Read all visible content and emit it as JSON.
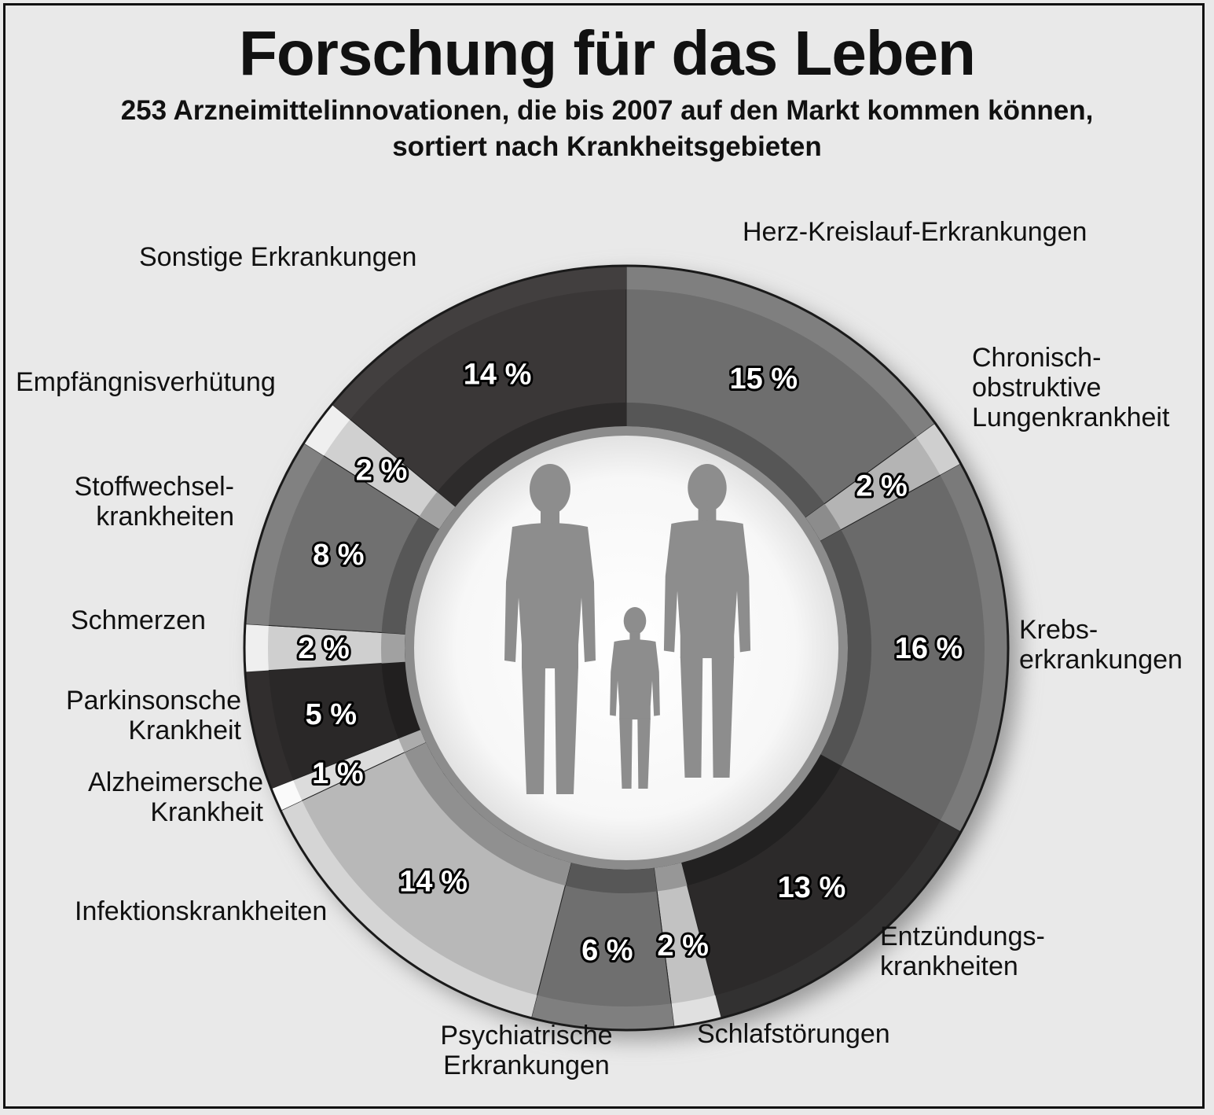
{
  "title": "Forschung für das Leben",
  "subtitle_line1": "253 Arzneimittelinnovationen, die bis 2007 auf den Markt kommen können,",
  "subtitle_line2": "sortiert nach Krankheitsgebieten",
  "chart_data": {
    "type": "pie",
    "title": "Forschung für das Leben",
    "subtitle": "253 Arzneimittelinnovationen, die bis 2007 auf den Markt kommen können, sortiert nach Krankheitsgebieten",
    "slices": [
      {
        "label": "Herz-Kreislauf-Erkrankungen",
        "value": 15,
        "value_label": "15 %",
        "color": "#6e6e6e"
      },
      {
        "label": "Chronisch-obstruktive Lungenkrankheit",
        "value": 2,
        "value_label": "2 %",
        "color": "#b4b4b4"
      },
      {
        "label": "Krebs-erkrankungen",
        "value": 16,
        "value_label": "16 %",
        "color": "#6a6a6a"
      },
      {
        "label": "Entzündungs-krankheiten",
        "value": 13,
        "value_label": "13 %",
        "color": "#2c2a2a"
      },
      {
        "label": "Schlafstörungen",
        "value": 2,
        "value_label": "2 %",
        "color": "#c2c2c2"
      },
      {
        "label": "Psychiatrische Erkrankungen",
        "value": 6,
        "value_label": "6 %",
        "color": "#6f6f6f"
      },
      {
        "label": "Infektionskrankheiten",
        "value": 14,
        "value_label": "14 %",
        "color": "#b8b8b8"
      },
      {
        "label": "Alzheimersche Krankheit",
        "value": 1,
        "value_label": "1 %",
        "color": "#dcdcdc"
      },
      {
        "label": "Parkinsonsche Krankheit",
        "value": 5,
        "value_label": "5 %",
        "color": "#2a2828"
      },
      {
        "label": "Schmerzen",
        "value": 2,
        "value_label": "2 %",
        "color": "#cfcfcf"
      },
      {
        "label": "Stoffwechsel-krankheiten",
        "value": 8,
        "value_label": "8 %",
        "color": "#707070"
      },
      {
        "label": "Empfängnisverhütung",
        "value": 2,
        "value_label": "2 %",
        "color": "#d0d0d0"
      },
      {
        "label": "Sonstige Erkrankungen",
        "value": 14,
        "value_label": "14 %",
        "color": "#3a3737"
      }
    ]
  },
  "labels": {
    "herz": "Herz-Kreislauf-Erkrankungen",
    "copd1": "Chronisch-",
    "copd2": "obstruktive",
    "copd3": "Lungenkrankheit",
    "krebs1": "Krebs-",
    "krebs2": "erkrankungen",
    "entz1": "Entzündungs-",
    "entz2": "krankheiten",
    "schlaf": "Schlafstörungen",
    "psych1": "Psychiatrische",
    "psych2": "Erkrankungen",
    "infekt": "Infektionskrankheiten",
    "alz1": "Alzheimersche",
    "alz2": "Krankheit",
    "park1": "Parkinsonsche",
    "park2": "Krankheit",
    "schmerz": "Schmerzen",
    "stoff1": "Stoffwechsel-",
    "stoff2": "krankheiten",
    "empf": "Empfängnisverhütung",
    "sonst": "Sonstige Erkrankungen"
  }
}
